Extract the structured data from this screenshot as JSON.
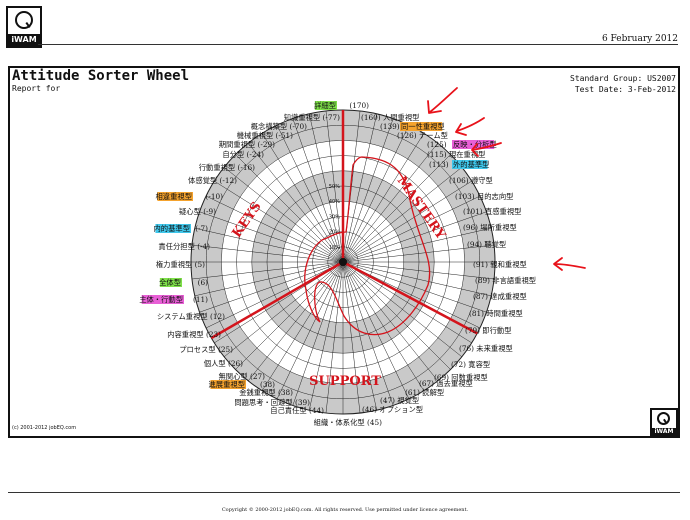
{
  "header": {
    "logo_text": "iWAM",
    "date": "6 February 2012"
  },
  "report": {
    "title": "Attitude Sorter Wheel",
    "report_for": "Report for",
    "standard_group": "Standard Group: US2007",
    "test_date": "Test Date: 3-Feb-2012",
    "copyright_left": "(c) 2001-2012 jobEQ.com"
  },
  "footer": {
    "copyright": "Copyright © 2000-2012 jobEQ.com. All rights reserved. Use permitted under licence agreement."
  },
  "wheel": {
    "percent_labels": [
      "10%",
      "20%",
      "30%",
      "40%",
      "50%"
    ],
    "quadrants": {
      "top_right": "MASTERY",
      "top_left": "KEYS",
      "bottom": "SUPPORT"
    },
    "right_labels": [
      {
        "text": "(160)  人間重視型",
        "highlight": ""
      },
      {
        "text": "(139)",
        "highlight": ""
      },
      {
        "text": "同一性重視型",
        "highlight": "#f5a32e"
      },
      {
        "text": "(126)  チーム型",
        "highlight": ""
      },
      {
        "text": "(125)",
        "highlight": ""
      },
      {
        "text": "反映・分析型",
        "highlight": "#e85fd6"
      },
      {
        "text": "(115)  現在重視型",
        "highlight": ""
      },
      {
        "text": "(113)",
        "highlight": ""
      },
      {
        "text": "外的基準型",
        "highlight": "#3fc6ea"
      },
      {
        "text": "(106)  遵守型",
        "highlight": ""
      },
      {
        "text": "(103)  目的志向型",
        "highlight": ""
      },
      {
        "text": "(101)  直感重視型",
        "highlight": ""
      },
      {
        "text": "(96)  場所重視型",
        "highlight": ""
      },
      {
        "text": "(94)  聴覚型",
        "highlight": ""
      },
      {
        "text": "(91)  親和重視型",
        "highlight": ""
      },
      {
        "text": "(89)  非言語重視型",
        "highlight": ""
      },
      {
        "text": "(87)  達成重視型",
        "highlight": ""
      },
      {
        "text": "(81)  時間重視型",
        "highlight": ""
      },
      {
        "text": "(79)  即行動型",
        "highlight": ""
      },
      {
        "text": "(76)  未来重視型",
        "highlight": ""
      },
      {
        "text": "(72)  寛容型",
        "highlight": ""
      },
      {
        "text": "(69)  回数重視型",
        "highlight": ""
      },
      {
        "text": "(67)  過去重視型",
        "highlight": ""
      },
      {
        "text": "(61)  読解型",
        "highlight": ""
      },
      {
        "text": "(47)  視覚型",
        "highlight": ""
      },
      {
        "text": "(46)  オプション型",
        "highlight": ""
      },
      {
        "text": "組織・体系化型  (45)",
        "highlight": ""
      }
    ],
    "left_labels": [
      {
        "text": "詳細型",
        "highlight": "#7fe04a"
      },
      {
        "text": "(170)",
        "highlight": ""
      },
      {
        "text": "知識重視型  (-77)",
        "highlight": ""
      },
      {
        "text": "概念構築型  (-70)",
        "highlight": ""
      },
      {
        "text": "機械重視型  (-51)",
        "highlight": ""
      },
      {
        "text": "期間重視型  (-29)",
        "highlight": ""
      },
      {
        "text": "自分型  (-24)",
        "highlight": ""
      },
      {
        "text": "行動重視型  (-16)",
        "highlight": ""
      },
      {
        "text": "体感覚型  (-12)",
        "highlight": ""
      },
      {
        "text": "相違重視型",
        "highlight": "#f5a32e"
      },
      {
        "text": "(-10)",
        "highlight": ""
      },
      {
        "text": "疑心型  (-9)",
        "highlight": ""
      },
      {
        "text": "内的基準型",
        "highlight": "#3fc6ea"
      },
      {
        "text": "(-7)",
        "highlight": ""
      },
      {
        "text": "責任分担型  (-4)",
        "highlight": ""
      },
      {
        "text": "権力重視型  (5)",
        "highlight": ""
      },
      {
        "text": "全体型",
        "highlight": "#7fe04a"
      },
      {
        "text": "(6)",
        "highlight": ""
      },
      {
        "text": "主体・行動型",
        "highlight": "#e85fd6"
      },
      {
        "text": "(11)",
        "highlight": ""
      },
      {
        "text": "システム重視型  (12)",
        "highlight": ""
      },
      {
        "text": "内容重視型  (23)",
        "highlight": ""
      },
      {
        "text": "プロセス型  (25)",
        "highlight": ""
      },
      {
        "text": "個人型  (26)",
        "highlight": ""
      },
      {
        "text": "無関心型  (27)",
        "highlight": ""
      },
      {
        "text": "進展重視型",
        "highlight": "#f5a32e"
      },
      {
        "text": "(38)",
        "highlight": ""
      },
      {
        "text": "金銭重視型  (38)",
        "highlight": ""
      },
      {
        "text": "問題思考・回避型  (39)",
        "highlight": ""
      },
      {
        "text": "自己責任型  (44)",
        "highlight": ""
      }
    ],
    "colors": {
      "shade": "#c9c9c9",
      "profile_line": "#d4141c",
      "annotation_arrow": "#e8121a"
    }
  }
}
